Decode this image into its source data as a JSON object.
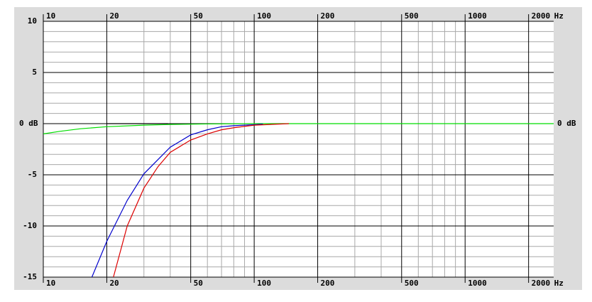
{
  "chart_data": {
    "type": "line",
    "x_unit": "Hz",
    "xscale": "log",
    "xlim": [
      10,
      2630
    ],
    "ylim": [
      -15,
      10
    ],
    "xticks": [
      10,
      20,
      50,
      100,
      200,
      500,
      1000,
      2000
    ],
    "xminor": [
      30,
      40,
      60,
      70,
      80,
      90,
      300,
      400,
      600,
      700,
      800,
      900
    ],
    "yticks": [
      10,
      5,
      {
        "value": 0,
        "label": "0 dB"
      },
      -5,
      -10,
      -15
    ],
    "yminor": [
      9,
      8,
      7,
      6,
      4,
      3,
      2,
      1,
      -1,
      -2,
      -3,
      -4,
      -6,
      -7,
      -8,
      -9,
      -11,
      -12,
      -13,
      -14
    ],
    "grid": true,
    "series": [
      {
        "color": "#00dd00",
        "x": [
          10,
          12,
          15,
          20,
          30,
          40,
          60,
          100,
          2630
        ],
        "values": [
          -1.0,
          -0.75,
          -0.5,
          -0.3,
          -0.15,
          -0.08,
          -0.03,
          0,
          0
        ]
      },
      {
        "color": "#000000",
        "x": [
          20,
          39
        ],
        "values": [
          0,
          0
        ]
      },
      {
        "color": "#0000cc",
        "x": [
          17,
          20,
          25,
          30,
          40,
          50,
          60,
          70,
          80,
          100,
          110
        ],
        "values": [
          -15,
          -11.5,
          -7.5,
          -4.9,
          -2.3,
          -1.1,
          -0.6,
          -0.3,
          -0.2,
          -0.1,
          -0.05
        ]
      },
      {
        "color": "#dd0000",
        "x": [
          21.5,
          25,
          30,
          35,
          40,
          50,
          60,
          70,
          80,
          100,
          146
        ],
        "values": [
          -15,
          -10.0,
          -6.3,
          -4.2,
          -2.8,
          -1.6,
          -1.0,
          -0.6,
          -0.4,
          -0.15,
          0
        ]
      }
    ]
  }
}
